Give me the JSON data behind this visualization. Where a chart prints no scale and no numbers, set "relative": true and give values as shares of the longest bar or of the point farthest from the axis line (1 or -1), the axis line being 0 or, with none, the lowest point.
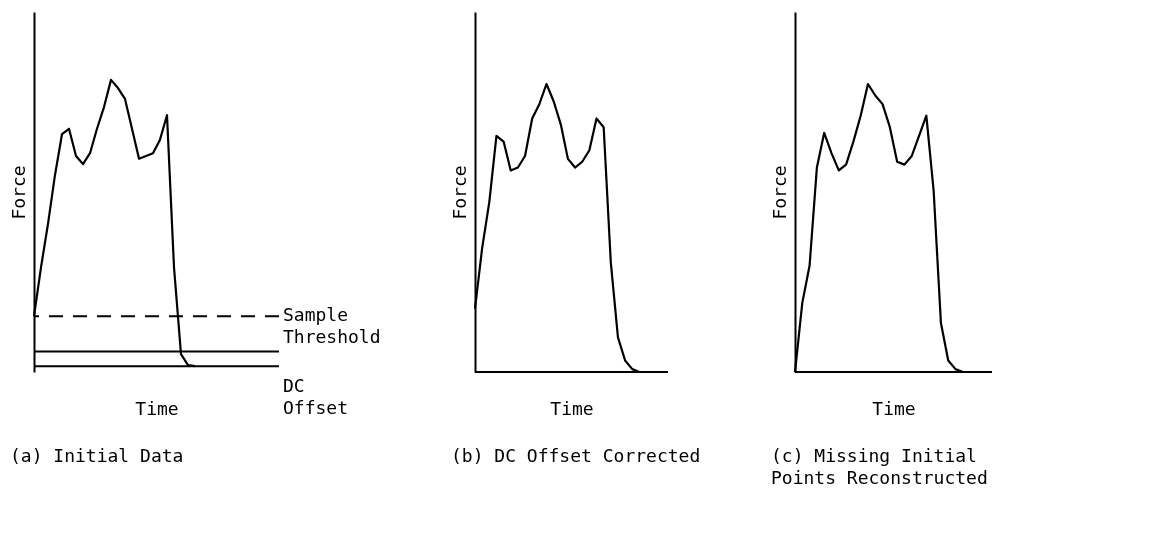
{
  "chart_data": [
    {
      "type": "line",
      "title": "(a) Initial Data",
      "xlabel": "Time",
      "ylabel": "Force",
      "relative": true,
      "categories": [
        null,
        null,
        null,
        null,
        null,
        null,
        null,
        null,
        null,
        null,
        null,
        null,
        null,
        null,
        null,
        null,
        null,
        null,
        null,
        null,
        null,
        null,
        null,
        null,
        null,
        null,
        null,
        null,
        null,
        null,
        null,
        null,
        null,
        null,
        null,
        null
      ],
      "series": [
        {
          "color": "#000000",
          "values": [
            0.13,
            0.31,
            0.47,
            0.65,
            0.8,
            0.82,
            0.72,
            0.69,
            0.73,
            0.82,
            0.9,
            1.0,
            0.97,
            0.93,
            0.82,
            0.71,
            0.72,
            0.73,
            0.78,
            0.87,
            0.31,
            -0.01,
            -0.05,
            -0.054,
            null,
            null,
            null,
            null,
            null,
            null,
            null,
            null,
            null,
            null,
            null,
            null
          ]
        }
      ],
      "ref_lines": [
        {
          "axis": "y",
          "value": 0.13,
          "label": "Sample Threshold",
          "line_style": "dashed"
        },
        {
          "axis": "y",
          "value": -0.054,
          "label": "DC Offset"
        }
      ]
    },
    {
      "type": "line",
      "title": "(b) DC Offset Corrected",
      "xlabel": "Time",
      "ylabel": "Force",
      "relative": true,
      "categories": [
        null,
        null,
        null,
        null,
        null,
        null,
        null,
        null,
        null,
        null,
        null,
        null,
        null,
        null,
        null,
        null,
        null,
        null,
        null,
        null,
        null,
        null,
        null,
        null,
        null,
        null,
        null,
        null
      ],
      "series": [
        {
          "color": "#000000",
          "values": [
            0.22,
            0.43,
            0.59,
            0.82,
            0.8,
            0.7,
            0.71,
            0.75,
            0.88,
            0.93,
            1.0,
            0.94,
            0.86,
            0.74,
            0.71,
            0.73,
            0.77,
            0.88,
            0.85,
            0.38,
            0.12,
            0.04,
            0.01,
            0,
            0,
            0,
            0,
            0
          ]
        }
      ]
    },
    {
      "type": "line",
      "title": "(c) Missing Initial Points Reconstructed",
      "xlabel": "Time",
      "ylabel": "Force",
      "relative": true,
      "categories": [
        null,
        null,
        null,
        null,
        null,
        null,
        null,
        null,
        null,
        null,
        null,
        null,
        null,
        null,
        null,
        null,
        null,
        null,
        null,
        null,
        null,
        null,
        null,
        null,
        null,
        null,
        null,
        null
      ],
      "series": [
        {
          "color": "#000000",
          "values": [
            0,
            0.24,
            0.37,
            0.71,
            0.83,
            0.76,
            0.7,
            0.72,
            0.8,
            0.89,
            1.0,
            0.96,
            0.93,
            0.85,
            0.73,
            0.72,
            0.75,
            0.82,
            0.89,
            0.63,
            0.17,
            0.04,
            0.01,
            0,
            0,
            0,
            0,
            0
          ]
        }
      ]
    }
  ]
}
